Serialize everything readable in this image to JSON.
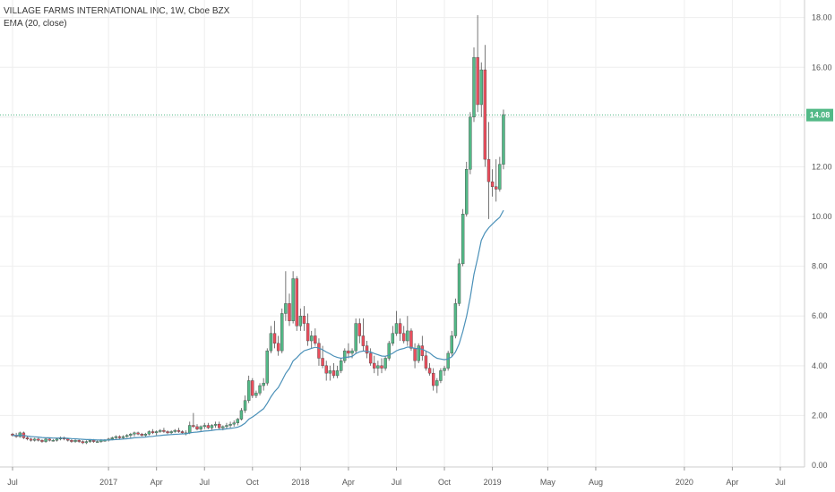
{
  "chart_data": {
    "type": "candlestick",
    "title": "VILLAGE FARMS INTERNATIONAL INC, 1W, Cboe BZX",
    "indicator": "EMA (20, close)",
    "ylim": [
      0,
      18.6
    ],
    "y_ticks": [
      "2.00",
      "4.00",
      "6.00",
      "8.00",
      "10.00",
      "12.00",
      "14.00",
      "16.00",
      "18.00",
      "0.00"
    ],
    "y_tick_values": [
      2,
      4,
      6,
      8,
      10,
      12,
      14,
      16,
      18,
      0
    ],
    "x_tick_labels": [
      "Jul",
      "2017",
      "Apr",
      "Jul",
      "Oct",
      "2018",
      "Apr",
      "Jul",
      "Oct",
      "2019",
      "May",
      "Aug",
      "2020",
      "Apr",
      "Jul"
    ],
    "x_tick_weeks": [
      0,
      26,
      39,
      52,
      65,
      78,
      91,
      104,
      117,
      130,
      145,
      158,
      182,
      195,
      208
    ],
    "last_price": "14.08",
    "last_price_value": 14.08,
    "colors": {
      "up": "#53b987",
      "down": "#eb4d5c",
      "ema": "#4a90b8",
      "grid": "#eeeeee",
      "price_line": "#53b987",
      "price_tag": "#53b987"
    },
    "candles": [
      [
        1.25,
        1.3,
        1.15,
        1.2
      ],
      [
        1.2,
        1.3,
        1.1,
        1.15
      ],
      [
        1.15,
        1.35,
        1.1,
        1.3
      ],
      [
        1.3,
        1.35,
        1.05,
        1.1
      ],
      [
        1.1,
        1.15,
        1.0,
        1.05
      ],
      [
        1.05,
        1.1,
        0.95,
        1.0
      ],
      [
        1.0,
        1.1,
        0.95,
        1.05
      ],
      [
        1.05,
        1.1,
        0.95,
        1.0
      ],
      [
        1.0,
        1.05,
        0.9,
        0.95
      ],
      [
        0.95,
        1.1,
        0.9,
        1.05
      ],
      [
        1.05,
        1.1,
        0.95,
        1.0
      ],
      [
        1.0,
        1.05,
        0.95,
        1.0
      ],
      [
        1.0,
        1.1,
        0.95,
        1.05
      ],
      [
        1.05,
        1.15,
        1.0,
        1.1
      ],
      [
        1.1,
        1.15,
        1.0,
        1.05
      ],
      [
        1.05,
        1.1,
        0.95,
        1.0
      ],
      [
        1.0,
        1.05,
        0.9,
        0.95
      ],
      [
        0.95,
        1.05,
        0.9,
        1.0
      ],
      [
        1.0,
        1.05,
        0.9,
        0.95
      ],
      [
        0.95,
        1.0,
        0.85,
        0.9
      ],
      [
        0.9,
        1.0,
        0.85,
        0.95
      ],
      [
        0.95,
        1.05,
        0.9,
        1.0
      ],
      [
        1.0,
        1.05,
        0.9,
        0.95
      ],
      [
        0.95,
        1.0,
        0.9,
        0.95
      ],
      [
        0.95,
        1.05,
        0.9,
        1.0
      ],
      [
        1.0,
        1.05,
        0.95,
        1.0
      ],
      [
        1.0,
        1.1,
        0.95,
        1.05
      ],
      [
        1.05,
        1.15,
        1.0,
        1.1
      ],
      [
        1.1,
        1.2,
        1.05,
        1.15
      ],
      [
        1.15,
        1.2,
        1.05,
        1.1
      ],
      [
        1.1,
        1.2,
        1.05,
        1.15
      ],
      [
        1.15,
        1.25,
        1.1,
        1.2
      ],
      [
        1.2,
        1.3,
        1.1,
        1.25
      ],
      [
        1.25,
        1.35,
        1.15,
        1.3
      ],
      [
        1.3,
        1.35,
        1.2,
        1.25
      ],
      [
        1.25,
        1.3,
        1.15,
        1.2
      ],
      [
        1.2,
        1.3,
        1.15,
        1.25
      ],
      [
        1.25,
        1.4,
        1.2,
        1.35
      ],
      [
        1.35,
        1.45,
        1.25,
        1.3
      ],
      [
        1.3,
        1.4,
        1.2,
        1.35
      ],
      [
        1.35,
        1.45,
        1.3,
        1.4
      ],
      [
        1.4,
        1.5,
        1.3,
        1.35
      ],
      [
        1.35,
        1.4,
        1.25,
        1.3
      ],
      [
        1.3,
        1.4,
        1.25,
        1.35
      ],
      [
        1.35,
        1.45,
        1.3,
        1.4
      ],
      [
        1.4,
        1.5,
        1.3,
        1.35
      ],
      [
        1.35,
        1.4,
        1.25,
        1.3
      ],
      [
        1.3,
        1.4,
        1.2,
        1.3
      ],
      [
        1.3,
        1.75,
        1.25,
        1.6
      ],
      [
        1.6,
        2.1,
        1.5,
        1.55
      ],
      [
        1.55,
        1.65,
        1.4,
        1.45
      ],
      [
        1.45,
        1.6,
        1.35,
        1.55
      ],
      [
        1.55,
        1.7,
        1.45,
        1.6
      ],
      [
        1.6,
        1.7,
        1.45,
        1.5
      ],
      [
        1.5,
        1.65,
        1.4,
        1.6
      ],
      [
        1.6,
        1.75,
        1.5,
        1.65
      ],
      [
        1.65,
        1.75,
        1.45,
        1.5
      ],
      [
        1.5,
        1.6,
        1.4,
        1.55
      ],
      [
        1.55,
        1.7,
        1.45,
        1.6
      ],
      [
        1.6,
        1.75,
        1.5,
        1.65
      ],
      [
        1.65,
        1.8,
        1.55,
        1.7
      ],
      [
        1.7,
        1.9,
        1.6,
        1.85
      ],
      [
        1.85,
        2.3,
        1.8,
        2.2
      ],
      [
        2.2,
        2.8,
        2.1,
        2.6
      ],
      [
        2.6,
        3.6,
        2.5,
        3.4
      ],
      [
        3.4,
        3.5,
        2.7,
        2.8
      ],
      [
        2.8,
        3.0,
        2.7,
        2.9
      ],
      [
        2.9,
        3.3,
        2.8,
        3.2
      ],
      [
        3.2,
        3.5,
        3.0,
        3.3
      ],
      [
        3.3,
        4.7,
        3.2,
        4.6
      ],
      [
        4.6,
        5.6,
        4.5,
        5.3
      ],
      [
        5.3,
        5.8,
        4.7,
        4.9
      ],
      [
        4.9,
        5.2,
        4.4,
        4.6
      ],
      [
        4.6,
        6.3,
        4.5,
        6.1
      ],
      [
        6.1,
        7.8,
        5.8,
        6.5
      ],
      [
        6.5,
        6.9,
        5.6,
        5.8
      ],
      [
        5.8,
        7.8,
        5.7,
        7.5
      ],
      [
        7.5,
        7.6,
        5.4,
        5.6
      ],
      [
        5.6,
        6.3,
        5.4,
        6.0
      ],
      [
        6.0,
        6.4,
        5.4,
        5.7
      ],
      [
        5.7,
        6.1,
        4.8,
        5.0
      ],
      [
        5.0,
        5.4,
        4.7,
        5.2
      ],
      [
        5.2,
        5.5,
        4.8,
        4.9
      ],
      [
        4.9,
        5.1,
        4.0,
        4.3
      ],
      [
        4.3,
        4.8,
        3.9,
        4.0
      ],
      [
        4.0,
        4.2,
        3.4,
        3.7
      ],
      [
        3.7,
        4.0,
        3.4,
        3.8
      ],
      [
        3.8,
        4.1,
        3.5,
        3.6
      ],
      [
        3.6,
        4.0,
        3.5,
        3.8
      ],
      [
        3.8,
        4.3,
        3.7,
        4.2
      ],
      [
        4.2,
        4.7,
        4.1,
        4.6
      ],
      [
        4.6,
        4.9,
        4.3,
        4.5
      ],
      [
        4.5,
        4.7,
        4.3,
        4.6
      ],
      [
        4.6,
        5.9,
        4.5,
        5.7
      ],
      [
        5.7,
        5.9,
        4.9,
        5.2
      ],
      [
        5.2,
        5.9,
        4.6,
        4.8
      ],
      [
        4.8,
        5.0,
        4.3,
        4.5
      ],
      [
        4.5,
        4.7,
        4.0,
        4.1
      ],
      [
        4.1,
        4.4,
        3.7,
        3.9
      ],
      [
        3.9,
        4.2,
        3.6,
        4.0
      ],
      [
        4.0,
        4.3,
        3.7,
        3.9
      ],
      [
        3.9,
        4.4,
        3.8,
        4.3
      ],
      [
        4.3,
        5.0,
        4.2,
        4.9
      ],
      [
        4.9,
        5.6,
        4.8,
        5.3
      ],
      [
        5.3,
        6.2,
        5.2,
        5.7
      ],
      [
        5.7,
        5.9,
        5.0,
        5.3
      ],
      [
        5.3,
        5.6,
        4.9,
        5.0
      ],
      [
        5.0,
        6.0,
        4.8,
        5.4
      ],
      [
        5.4,
        5.5,
        4.6,
        4.7
      ],
      [
        4.7,
        4.9,
        3.9,
        4.2
      ],
      [
        4.2,
        4.9,
        4.1,
        4.8
      ],
      [
        4.8,
        5.2,
        4.2,
        4.4
      ],
      [
        4.4,
        4.6,
        3.8,
        3.9
      ],
      [
        3.9,
        4.1,
        3.6,
        3.7
      ],
      [
        3.7,
        3.9,
        3.0,
        3.2
      ],
      [
        3.2,
        3.5,
        2.9,
        3.4
      ],
      [
        3.4,
        3.9,
        3.3,
        3.8
      ],
      [
        3.8,
        4.0,
        3.6,
        3.9
      ],
      [
        3.9,
        4.6,
        3.8,
        4.5
      ],
      [
        4.5,
        5.4,
        4.4,
        5.2
      ],
      [
        5.2,
        6.7,
        5.1,
        6.5
      ],
      [
        6.5,
        8.3,
        6.4,
        8.1
      ],
      [
        8.1,
        10.3,
        8.0,
        10.1
      ],
      [
        10.1,
        12.2,
        10.0,
        11.9
      ],
      [
        11.9,
        14.2,
        11.7,
        14.0
      ],
      [
        14.0,
        16.8,
        13.8,
        16.4
      ],
      [
        16.4,
        18.1,
        14.2,
        14.5
      ],
      [
        14.5,
        16.2,
        14.0,
        15.9
      ],
      [
        15.9,
        16.9,
        12.0,
        12.3
      ],
      [
        12.3,
        13.8,
        9.9,
        11.4
      ],
      [
        11.4,
        11.9,
        10.8,
        11.2
      ],
      [
        11.2,
        12.3,
        10.6,
        11.1
      ],
      [
        11.1,
        12.4,
        11.0,
        12.1
      ],
      [
        12.1,
        14.3,
        11.9,
        14.1
      ]
    ],
    "ema": [
      1.2,
      1.19,
      1.2,
      1.19,
      1.17,
      1.15,
      1.14,
      1.13,
      1.11,
      1.1,
      1.1,
      1.09,
      1.09,
      1.09,
      1.09,
      1.08,
      1.07,
      1.06,
      1.05,
      1.04,
      1.03,
      1.03,
      1.02,
      1.01,
      1.01,
      1.01,
      1.01,
      1.02,
      1.03,
      1.04,
      1.05,
      1.06,
      1.08,
      1.1,
      1.11,
      1.12,
      1.13,
      1.15,
      1.16,
      1.18,
      1.19,
      1.21,
      1.22,
      1.23,
      1.24,
      1.25,
      1.26,
      1.26,
      1.3,
      1.32,
      1.33,
      1.35,
      1.37,
      1.38,
      1.4,
      1.42,
      1.43,
      1.44,
      1.46,
      1.48,
      1.5,
      1.53,
      1.59,
      1.69,
      1.85,
      1.94,
      2.04,
      2.16,
      2.27,
      2.49,
      2.75,
      2.96,
      3.12,
      3.4,
      3.69,
      3.89,
      4.19,
      4.32,
      4.48,
      4.6,
      4.65,
      4.7,
      4.74,
      4.71,
      4.64,
      4.55,
      4.48,
      4.39,
      4.33,
      4.3,
      4.33,
      4.35,
      4.37,
      4.49,
      4.56,
      4.59,
      4.58,
      4.55,
      4.49,
      4.44,
      4.39,
      4.38,
      4.43,
      4.5,
      4.6,
      4.66,
      4.69,
      4.75,
      4.74,
      4.69,
      4.69,
      4.66,
      4.59,
      4.51,
      4.39,
      4.3,
      4.27,
      4.24,
      4.27,
      4.36,
      4.55,
      4.88,
      5.38,
      5.99,
      6.75,
      7.67,
      8.32,
      9.04,
      9.35,
      9.55,
      9.7,
      9.84,
      9.97,
      10.25
    ]
  }
}
